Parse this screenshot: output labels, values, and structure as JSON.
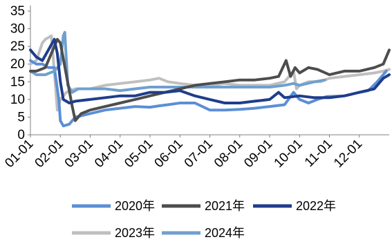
{
  "chart_data": {
    "type": "line",
    "title": "",
    "xlabel": "",
    "ylabel": "",
    "ylim": [
      0,
      35
    ],
    "y_ticks": [
      "0",
      "5",
      "10",
      "15",
      "20",
      "25",
      "30",
      "35"
    ],
    "x_tick_labels": [
      "01-01",
      "02-01",
      "03-01",
      "04-01",
      "05-01",
      "06-01",
      "07-01",
      "08-01",
      "09-01",
      "10-01",
      "11-01",
      "12-01"
    ],
    "x_range_months": [
      1,
      13
    ],
    "grid": false,
    "legend_position": "bottom",
    "series": [
      {
        "name": "2020年",
        "color": "#5b8fd6",
        "points": [
          [
            1.0,
            21
          ],
          [
            1.2,
            20
          ],
          [
            1.4,
            20
          ],
          [
            1.6,
            19
          ],
          [
            1.8,
            19
          ],
          [
            1.95,
            10
          ],
          [
            2.0,
            4
          ],
          [
            2.1,
            2.5
          ],
          [
            2.3,
            3
          ],
          [
            2.5,
            5
          ],
          [
            3.0,
            6
          ],
          [
            3.5,
            7
          ],
          [
            4.0,
            7.5
          ],
          [
            4.5,
            8
          ],
          [
            5.0,
            7.8
          ],
          [
            5.3,
            8.2
          ],
          [
            5.6,
            8.5
          ],
          [
            6.0,
            9
          ],
          [
            6.5,
            9
          ],
          [
            7.0,
            7
          ],
          [
            7.5,
            7
          ],
          [
            8.0,
            7.2
          ],
          [
            8.5,
            7.5
          ],
          [
            9.0,
            8
          ],
          [
            9.5,
            8.5
          ],
          [
            9.8,
            12
          ],
          [
            10.0,
            10
          ],
          [
            10.3,
            9
          ],
          [
            10.6,
            10
          ],
          [
            10.9,
            10.8
          ],
          [
            11.5,
            11
          ],
          [
            12.0,
            12
          ],
          [
            12.3,
            12.5
          ],
          [
            12.6,
            15
          ],
          [
            12.9,
            18
          ]
        ]
      },
      {
        "name": "2021年",
        "color": "#4d4d4d",
        "points": [
          [
            1.0,
            18
          ],
          [
            1.2,
            18
          ],
          [
            1.5,
            19
          ],
          [
            1.7,
            23
          ],
          [
            1.9,
            27
          ],
          [
            2.0,
            26
          ],
          [
            2.2,
            17
          ],
          [
            2.4,
            8
          ],
          [
            2.5,
            4
          ],
          [
            2.7,
            6
          ],
          [
            3.0,
            7
          ],
          [
            3.5,
            8
          ],
          [
            4.0,
            9
          ],
          [
            4.5,
            10
          ],
          [
            5.0,
            11
          ],
          [
            5.5,
            12
          ],
          [
            6.0,
            13
          ],
          [
            6.5,
            14
          ],
          [
            7.0,
            14.5
          ],
          [
            7.5,
            15
          ],
          [
            8.0,
            15.5
          ],
          [
            8.5,
            15.5
          ],
          [
            9.0,
            16
          ],
          [
            9.3,
            16.5
          ],
          [
            9.55,
            21
          ],
          [
            9.7,
            16.5
          ],
          [
            9.85,
            19
          ],
          [
            10.0,
            17.5
          ],
          [
            10.3,
            19
          ],
          [
            10.6,
            18.5
          ],
          [
            11.0,
            17
          ],
          [
            11.5,
            18
          ],
          [
            12.0,
            18
          ],
          [
            12.5,
            19
          ],
          [
            12.8,
            20
          ],
          [
            13.0,
            24
          ]
        ]
      },
      {
        "name": "2022年",
        "color": "#1f3d8c",
        "points": [
          [
            1.0,
            24
          ],
          [
            1.2,
            22
          ],
          [
            1.4,
            21
          ],
          [
            1.6,
            24
          ],
          [
            1.8,
            27
          ],
          [
            1.9,
            23
          ],
          [
            2.0,
            15
          ],
          [
            2.1,
            10
          ],
          [
            2.3,
            9
          ],
          [
            2.5,
            9.5
          ],
          [
            3.0,
            10
          ],
          [
            3.5,
            10.5
          ],
          [
            4.0,
            11
          ],
          [
            4.5,
            11
          ],
          [
            5.0,
            12
          ],
          [
            5.5,
            12
          ],
          [
            6.0,
            12.5
          ],
          [
            6.5,
            11
          ],
          [
            7.0,
            10
          ],
          [
            7.5,
            9
          ],
          [
            8.0,
            9
          ],
          [
            8.5,
            9.5
          ],
          [
            9.0,
            10
          ],
          [
            9.3,
            12
          ],
          [
            9.5,
            10.5
          ],
          [
            10.0,
            11
          ],
          [
            10.5,
            10.5
          ],
          [
            11.0,
            10.5
          ],
          [
            11.5,
            11
          ],
          [
            12.0,
            12
          ],
          [
            12.5,
            13
          ],
          [
            12.8,
            16
          ],
          [
            13.0,
            17
          ]
        ]
      },
      {
        "name": "2023年",
        "color": "#bfbfbf",
        "points": [
          [
            1.0,
            20
          ],
          [
            1.2,
            21
          ],
          [
            1.4,
            26
          ],
          [
            1.5,
            27
          ],
          [
            1.7,
            28
          ],
          [
            1.8,
            18
          ],
          [
            1.9,
            7
          ],
          [
            2.0,
            10
          ],
          [
            2.2,
            12
          ],
          [
            2.5,
            13
          ],
          [
            3.0,
            13
          ],
          [
            3.5,
            14
          ],
          [
            4.0,
            14.5
          ],
          [
            4.5,
            15
          ],
          [
            5.0,
            15.5
          ],
          [
            5.3,
            16
          ],
          [
            5.6,
            15
          ],
          [
            6.0,
            14.5
          ],
          [
            6.5,
            14
          ],
          [
            7.0,
            14
          ],
          [
            7.5,
            14.5
          ],
          [
            8.0,
            14
          ],
          [
            8.5,
            14
          ],
          [
            9.0,
            14
          ],
          [
            9.5,
            15
          ],
          [
            9.8,
            18
          ],
          [
            9.9,
            13
          ],
          [
            10.0,
            14
          ],
          [
            10.3,
            15
          ],
          [
            10.7,
            15
          ],
          [
            11.0,
            16
          ],
          [
            11.5,
            16.5
          ],
          [
            12.0,
            17
          ],
          [
            12.5,
            17.5
          ],
          [
            12.8,
            18
          ],
          [
            13.0,
            18.5
          ]
        ]
      },
      {
        "name": "2024年",
        "color": "#6fa0cf",
        "points": [
          [
            1.0,
            18
          ],
          [
            1.2,
            17
          ],
          [
            1.5,
            17
          ],
          [
            1.8,
            18
          ],
          [
            2.0,
            20
          ],
          [
            2.1,
            28
          ],
          [
            2.15,
            29
          ],
          [
            2.25,
            14
          ],
          [
            2.4,
            12
          ],
          [
            2.6,
            13
          ],
          [
            3.0,
            13
          ],
          [
            3.5,
            13
          ],
          [
            4.0,
            12.5
          ],
          [
            4.5,
            13
          ],
          [
            5.0,
            13.5
          ],
          [
            5.5,
            13.5
          ],
          [
            6.0,
            13.5
          ],
          [
            6.5,
            13.5
          ],
          [
            7.0,
            13.5
          ],
          [
            7.5,
            13.5
          ],
          [
            8.0,
            13.5
          ],
          [
            8.5,
            13.5
          ],
          [
            9.0,
            13.5
          ],
          [
            9.5,
            14
          ],
          [
            9.8,
            14.5
          ],
          [
            10.0,
            14
          ],
          [
            10.5,
            15
          ],
          [
            10.85,
            15.5
          ]
        ]
      }
    ]
  }
}
